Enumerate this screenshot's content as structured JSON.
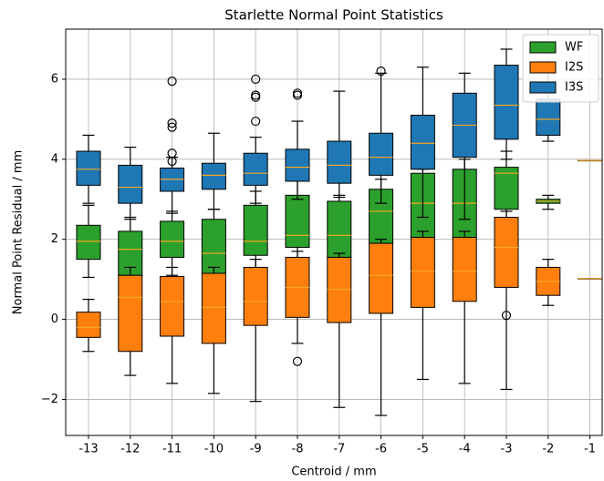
{
  "chart_data": {
    "type": "box",
    "title": "Starlette Normal Point Statistics",
    "x_label": "Centroid / mm",
    "y_label": "Normal Point Residual / mm",
    "categories": [
      "-13",
      "-12",
      "-11",
      "-10",
      "-9",
      "-8",
      "-7",
      "-6",
      "-5",
      "-4",
      "-3",
      "-2",
      "-1"
    ],
    "ylim": [
      -2.9,
      7.25
    ],
    "yticks": [
      {
        "value": -2,
        "label": "−2"
      },
      0,
      2,
      4,
      6
    ],
    "grid": true,
    "legend": "upper right",
    "series": [
      {
        "name": "WF",
        "color": "#2ca02c",
        "boxes": [
          {
            "low": 1.05,
            "q1": 1.5,
            "median": 1.95,
            "q3": 2.35,
            "high": 2.85,
            "outliers": []
          },
          {
            "low": 0,
            "q1": 1.1,
            "median": 1.75,
            "q3": 2.2,
            "high": 2.55,
            "outliers": []
          },
          {
            "low": 1.1,
            "q1": 1.55,
            "median": 1.95,
            "q3": 2.45,
            "high": 2.7,
            "outliers": []
          },
          {
            "low": 0.5,
            "q1": 1.15,
            "median": 1.65,
            "q3": 2.5,
            "high": 2.75,
            "outliers": []
          },
          {
            "low": 1.0,
            "q1": 1.6,
            "median": 1.95,
            "q3": 2.85,
            "high": 3.2,
            "outliers": []
          },
          {
            "low": 1.2,
            "q1": 1.8,
            "median": 2.1,
            "q3": 3.1,
            "high": 3.5,
            "outliers": []
          },
          {
            "low": 1.0,
            "q1": 1.55,
            "median": 2.1,
            "q3": 2.95,
            "high": 3.1,
            "outliers": []
          },
          {
            "low": 1.1,
            "q1": 1.9,
            "median": 2.7,
            "q3": 3.25,
            "high": 3.5,
            "outliers": []
          },
          {
            "low": 1.1,
            "q1": 2.05,
            "median": 2.9,
            "q3": 3.65,
            "high": 3.75,
            "outliers": []
          },
          {
            "low": 1.1,
            "q1": 2.05,
            "median": 2.9,
            "q3": 3.75,
            "high": 4.0,
            "outliers": []
          },
          {
            "low": 2.5,
            "q1": 2.75,
            "median": 3.65,
            "q3": 3.8,
            "high": 4.2,
            "outliers": []
          },
          {
            "low": 2.75,
            "q1": 2.9,
            "median": 2.95,
            "q3": 3.0,
            "high": 3.1,
            "outliers": []
          },
          null
        ]
      },
      {
        "name": "I2S",
        "color": "#ff7f0e",
        "boxes": [
          {
            "low": -0.8,
            "q1": -0.45,
            "median": -0.2,
            "q3": 0.18,
            "high": 0.5,
            "outliers": []
          },
          {
            "low": -1.4,
            "q1": -0.8,
            "median": 0.55,
            "q3": 1.1,
            "high": 1.3,
            "outliers": []
          },
          {
            "low": -1.6,
            "q1": -0.42,
            "median": 0.45,
            "q3": 1.07,
            "high": 1.3,
            "outliers": []
          },
          {
            "low": -1.85,
            "q1": -0.6,
            "median": 0.3,
            "q3": 1.15,
            "high": 1.3,
            "outliers": []
          },
          {
            "low": -2.05,
            "q1": -0.15,
            "median": 0.45,
            "q3": 1.3,
            "high": 1.5,
            "outliers": []
          },
          {
            "low": -0.6,
            "q1": 0.05,
            "median": 0.8,
            "q3": 1.55,
            "high": 1.7,
            "outliers": [
              -1.05
            ]
          },
          {
            "low": -2.2,
            "q1": -0.08,
            "median": 0.75,
            "q3": 1.55,
            "high": 1.65,
            "outliers": []
          },
          {
            "low": -2.4,
            "q1": 0.15,
            "median": 1.1,
            "q3": 1.9,
            "high": 2.0,
            "outliers": []
          },
          {
            "low": -1.5,
            "q1": 0.3,
            "median": 1.2,
            "q3": 2.05,
            "high": 2.2,
            "outliers": []
          },
          {
            "low": -1.6,
            "q1": 0.45,
            "median": 1.2,
            "q3": 2.05,
            "high": 2.2,
            "outliers": []
          },
          {
            "low": -1.75,
            "q1": 0.8,
            "median": 1.8,
            "q3": 2.55,
            "high": 2.7,
            "outliers": [
              0.1
            ]
          },
          {
            "low": 0.35,
            "q1": 0.6,
            "median": 0.95,
            "q3": 1.3,
            "high": 1.5,
            "outliers": []
          },
          {
            "low": 1.02,
            "q1": 1.02,
            "median": 1.02,
            "q3": 1.02,
            "high": 1.02,
            "outliers": []
          }
        ]
      },
      {
        "name": "I3S",
        "color": "#1f77b4",
        "boxes": [
          {
            "low": 2.9,
            "q1": 3.35,
            "median": 3.75,
            "q3": 4.2,
            "high": 4.6,
            "outliers": []
          },
          {
            "low": 2.5,
            "q1": 2.9,
            "median": 3.3,
            "q3": 3.85,
            "high": 4.3,
            "outliers": []
          },
          {
            "low": 2.65,
            "q1": 3.2,
            "median": 3.5,
            "q3": 3.78,
            "high": 4.05,
            "outliers": [
              5.95,
              4.9,
              4.8,
              4.15,
              3.95
            ]
          },
          {
            "low": 2.75,
            "q1": 3.25,
            "median": 3.6,
            "q3": 3.9,
            "high": 4.65,
            "outliers": []
          },
          {
            "low": 2.9,
            "q1": 3.35,
            "median": 3.65,
            "q3": 4.15,
            "high": 4.55,
            "outliers": [
              6.0,
              5.6,
              5.55,
              4.95
            ]
          },
          {
            "low": 3.0,
            "q1": 3.45,
            "median": 3.8,
            "q3": 4.25,
            "high": 4.95,
            "outliers": [
              5.6,
              5.65
            ]
          },
          {
            "low": 3.05,
            "q1": 3.4,
            "median": 3.85,
            "q3": 4.45,
            "high": 5.7,
            "outliers": []
          },
          {
            "low": 2.9,
            "q1": 3.6,
            "median": 4.05,
            "q3": 4.65,
            "high": 6.15,
            "outliers": [
              6.2
            ]
          },
          {
            "low": 2.55,
            "q1": 3.75,
            "median": 4.4,
            "q3": 5.1,
            "high": 6.3,
            "outliers": []
          },
          {
            "low": 2.5,
            "q1": 4.05,
            "median": 4.85,
            "q3": 5.65,
            "high": 6.15,
            "outliers": []
          },
          {
            "low": 4.0,
            "q1": 4.5,
            "median": 5.35,
            "q3": 6.35,
            "high": 6.75,
            "outliers": []
          },
          {
            "low": 4.45,
            "q1": 4.6,
            "median": 5.0,
            "q3": 5.5,
            "high": 6.4,
            "outliers": []
          },
          {
            "low": 3.97,
            "q1": 3.97,
            "median": 3.97,
            "q3": 3.97,
            "high": 3.97,
            "outliers": []
          }
        ]
      }
    ]
  }
}
